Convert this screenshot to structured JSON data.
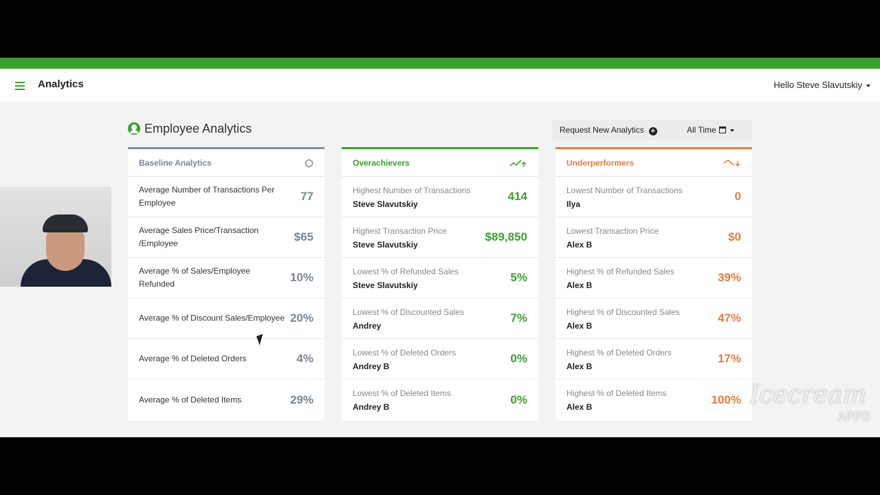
{
  "header": {
    "app_title": "Analytics",
    "user_greeting": "Hello Steve Slavutskiy"
  },
  "page": {
    "title": "Employee Analytics",
    "request_label": "Request New Analytics",
    "time_filter_label": "All Time"
  },
  "panels": {
    "baseline": {
      "title": "Baseline Analytics",
      "icon": "circle-icon",
      "rows": [
        {
          "label": "Average Number of Transactions Per Employee",
          "value": "77"
        },
        {
          "label": "Average Sales Price/Transaction /Employee",
          "value": "$65"
        },
        {
          "label": "Average % of Sales/Employee Refunded",
          "value": "10%"
        },
        {
          "label": "Average % of Discount Sales/Employee",
          "value": "20%"
        },
        {
          "label": "Average % of Deleted Orders",
          "value": "4%"
        },
        {
          "label": "Average % of Deleted Items",
          "value": "29%"
        }
      ]
    },
    "overachievers": {
      "title": "Overachievers",
      "icon": "trend-up-icon",
      "rows": [
        {
          "label": "Highest Number of Transactions",
          "name": "Steve Slavutskiy",
          "value": "414"
        },
        {
          "label": "Highest Transaction Price",
          "name": "Steve Slavutskiy",
          "value": "$89,850"
        },
        {
          "label": "Lowest % of Refunded Sales",
          "name": "Steve Slavutskiy",
          "value": "5%"
        },
        {
          "label": "Lowest % of Discounted Sales",
          "name": "Andrey",
          "value": "7%"
        },
        {
          "label": "Lowest % of Deleted Orders",
          "name": "Andrey B",
          "value": "0%"
        },
        {
          "label": "Lowest % of Deleted Items",
          "name": "Andrey B",
          "value": "0%"
        }
      ]
    },
    "underperformers": {
      "title": "Underperformers",
      "icon": "trend-down-icon",
      "rows": [
        {
          "label": "Lowest Number of Transactions",
          "name": "Ilya",
          "value": "0"
        },
        {
          "label": "Lowest Transaction Price",
          "name": "Alex B",
          "value": "$0"
        },
        {
          "label": "Highest % of Refunded Sales",
          "name": "Alex B",
          "value": "39%"
        },
        {
          "label": "Highest % of Discounted Sales",
          "name": "Alex B",
          "value": "47%"
        },
        {
          "label": "Highest % of Deleted Orders",
          "name": "Alex B",
          "value": "17%"
        },
        {
          "label": "Highest % of Deleted Items",
          "name": "Alex B",
          "value": "100%"
        }
      ]
    }
  },
  "watermark": {
    "brand": "Icecream",
    "sub": "APPS"
  },
  "colors": {
    "accent_green": "#3aa12e",
    "accent_orange": "#f07a3a",
    "neutral_gray": "#7d8593"
  }
}
